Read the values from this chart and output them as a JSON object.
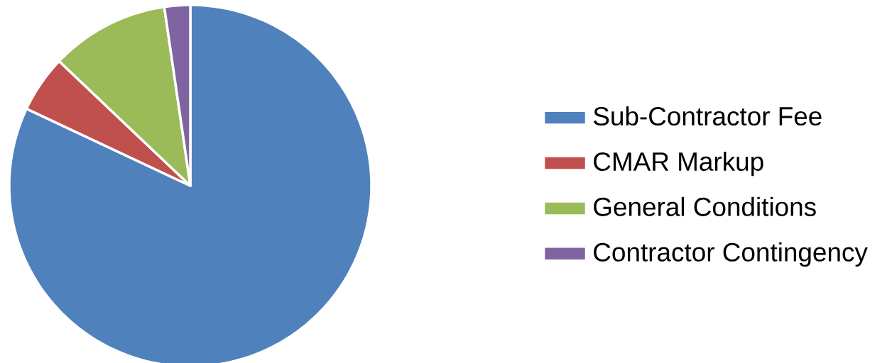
{
  "chart_data": {
    "type": "pie",
    "categories": [
      "Sub-Contractor Fee",
      "CMAR Markup",
      "General Conditions",
      "Contractor Contingency"
    ],
    "values": [
      82.0,
      5.1,
      10.6,
      2.3
    ],
    "colors": [
      "#4f81bd",
      "#c0504d",
      "#9bbb59",
      "#8064a2"
    ],
    "legend": "right"
  }
}
